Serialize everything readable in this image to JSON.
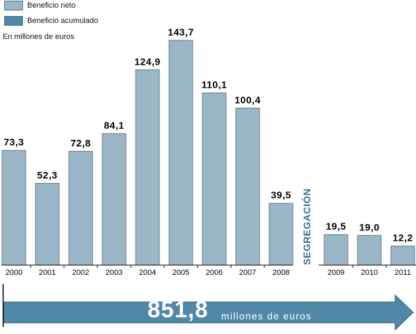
{
  "legend": {
    "items": [
      {
        "label": "Beneficio neto",
        "color": "#9bb6c7"
      },
      {
        "label": "Beneficio acumulado",
        "color": "#4f88a8"
      }
    ]
  },
  "unit_note": "En millones de euros",
  "segregation_label": "SEGREGACIÓN",
  "total": {
    "value": "851,8",
    "unit": "millones de euros"
  },
  "chart_data": {
    "type": "bar",
    "categories": [
      "2000",
      "2001",
      "2002",
      "2003",
      "2004",
      "2005",
      "2006",
      "2007",
      "2008",
      "2009",
      "2010",
      "2011"
    ],
    "values": [
      73.3,
      52.3,
      72.8,
      84.1,
      124.9,
      143.7,
      110.1,
      100.4,
      39.5,
      19.5,
      19.0,
      12.2
    ],
    "value_labels": [
      "73,3",
      "52,3",
      "72,8",
      "84,1",
      "124,9",
      "143,7",
      "110,1",
      "100,4",
      "39,5",
      "19,5",
      "19,0",
      "12,2"
    ],
    "title": "",
    "xlabel": "",
    "ylabel": "",
    "ylim": [
      0,
      143.7
    ],
    "grid": false,
    "legend_position": "top-left"
  }
}
